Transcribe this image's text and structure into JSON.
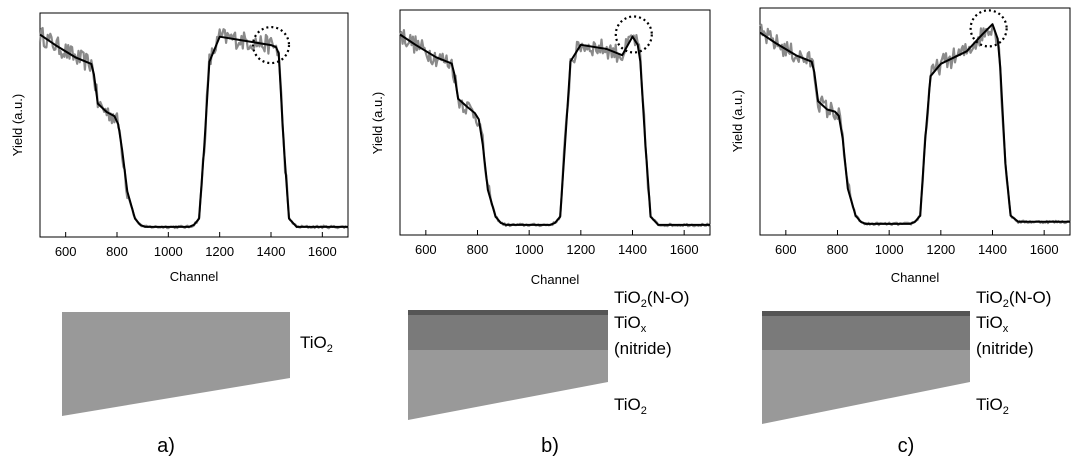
{
  "colors": {
    "noisy": "#8a8a8a",
    "fit": "#000000",
    "tio2": "#999999",
    "tiox_nitride": "#7a7a7a",
    "tio2_no": "#555555"
  },
  "chart_data": [
    {
      "type": "line",
      "panel": "a)",
      "xlabel": "Channel",
      "ylabel": "Yield (a.u.)",
      "xlim": [
        500,
        1700
      ],
      "xticks": [
        600,
        800,
        1000,
        1200,
        1400,
        1600
      ],
      "ylim": [
        0,
        1
      ],
      "grid": false,
      "x": [
        500,
        560,
        640,
        700,
        710,
        725,
        760,
        790,
        805,
        820,
        840,
        870,
        890,
        910,
        1000,
        1080,
        1100,
        1120,
        1140,
        1160,
        1200,
        1300,
        1400,
        1420,
        1430,
        1450,
        1470,
        1500,
        1600,
        1700
      ],
      "series": [
        {
          "values": [
            0.93,
            0.88,
            0.82,
            0.79,
            0.74,
            0.6,
            0.56,
            0.54,
            0.5,
            0.38,
            0.18,
            0.05,
            0.02,
            0.01,
            0.01,
            0.01,
            0.02,
            0.05,
            0.4,
            0.8,
            0.92,
            0.9,
            0.88,
            0.87,
            0.84,
            0.4,
            0.05,
            0.01,
            0.01,
            0.01
          ]
        }
      ],
      "annotation": {
        "type": "dotted-circle",
        "x": 1400,
        "y": 0.88
      }
    },
    {
      "type": "line",
      "panel": "b)",
      "xlabel": "Channel",
      "ylabel": "Yield (a.u.)",
      "xlim": [
        500,
        1700
      ],
      "xticks": [
        600,
        800,
        1000,
        1200,
        1400,
        1600
      ],
      "ylim": [
        0,
        1
      ],
      "grid": false,
      "x": [
        500,
        560,
        640,
        700,
        710,
        725,
        760,
        790,
        805,
        820,
        840,
        870,
        890,
        910,
        1000,
        1080,
        1100,
        1120,
        1140,
        1160,
        1200,
        1300,
        1360,
        1400,
        1420,
        1430,
        1450,
        1470,
        1500,
        1600,
        1700
      ],
      "series": [
        {
          "values": [
            0.93,
            0.88,
            0.82,
            0.79,
            0.74,
            0.62,
            0.58,
            0.55,
            0.52,
            0.4,
            0.18,
            0.05,
            0.02,
            0.01,
            0.01,
            0.01,
            0.02,
            0.05,
            0.42,
            0.8,
            0.88,
            0.86,
            0.83,
            0.92,
            0.88,
            0.8,
            0.4,
            0.05,
            0.01,
            0.01,
            0.01
          ]
        }
      ],
      "annotation": {
        "type": "dotted-circle",
        "x": 1405,
        "y": 0.93
      }
    },
    {
      "type": "line",
      "panel": "c)",
      "xlabel": "Channel",
      "ylabel": "Yield (a.u.)",
      "xlim": [
        500,
        1700
      ],
      "xticks": [
        600,
        800,
        1000,
        1200,
        1400,
        1600
      ],
      "ylim": [
        0,
        1
      ],
      "grid": false,
      "x": [
        500,
        560,
        640,
        700,
        710,
        725,
        760,
        790,
        805,
        820,
        840,
        870,
        890,
        910,
        1000,
        1080,
        1100,
        1120,
        1140,
        1160,
        1200,
        1300,
        1360,
        1400,
        1420,
        1430,
        1450,
        1470,
        1500,
        1600,
        1700
      ],
      "series": [
        {
          "values": [
            0.93,
            0.88,
            0.82,
            0.79,
            0.74,
            0.6,
            0.56,
            0.55,
            0.53,
            0.42,
            0.18,
            0.05,
            0.02,
            0.01,
            0.01,
            0.01,
            0.02,
            0.05,
            0.42,
            0.72,
            0.78,
            0.84,
            0.92,
            0.97,
            0.9,
            0.76,
            0.3,
            0.05,
            0.02,
            0.02,
            0.02
          ]
        }
      ],
      "annotation": {
        "type": "dotted-circle",
        "x": 1385,
        "y": 0.95
      }
    }
  ],
  "diagrams": [
    {
      "panel": "a)",
      "labels": {
        "tio2_main": "TiO",
        "tio2_sub": "2"
      }
    },
    {
      "panel": "b)",
      "labels": {
        "top_main": "TiO",
        "top_sub": "2",
        "top_suffix": "(N-O)",
        "mid_main": "TiO",
        "mid_sub": "x",
        "mid_line2": "(nitride)",
        "bottom_main": "TiO",
        "bottom_sub": "2"
      }
    },
    {
      "panel": "c)",
      "labels": {
        "top_main": "TiO",
        "top_sub": "2",
        "top_suffix": "(N-O)",
        "mid_main": "TiO",
        "mid_sub": "x",
        "mid_line2": "(nitride)",
        "bottom_main": "TiO",
        "bottom_sub": "2"
      }
    }
  ]
}
